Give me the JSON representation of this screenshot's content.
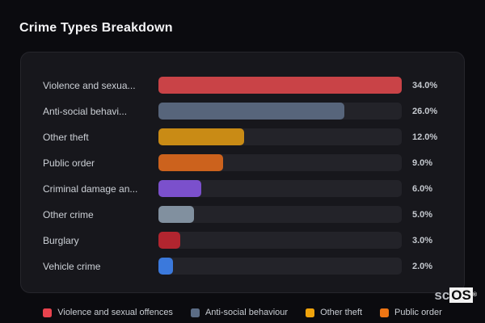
{
  "header": {
    "title": "Crime Types Breakdown"
  },
  "chart_data": {
    "type": "bar",
    "orientation": "horizontal",
    "title": "Crime Types Breakdown",
    "categories": [
      "Violence and sexua...",
      "Anti-social behavi...",
      "Other theft",
      "Public order",
      "Criminal damage an...",
      "Other crime",
      "Burglary",
      "Vehicle crime"
    ],
    "values": [
      34.0,
      26.0,
      12.0,
      9.0,
      6.0,
      5.0,
      3.0,
      2.0
    ],
    "value_labels": [
      "34.0%",
      "26.0%",
      "12.0%",
      "9.0%",
      "6.0%",
      "5.0%",
      "3.0%",
      "2.0%"
    ],
    "bar_colors": [
      "#c94347",
      "#57657b",
      "#c98b15",
      "#cc621d",
      "#7b50cc",
      "#81909f",
      "#b2252f",
      "#3b79dc"
    ],
    "xlim": [
      0,
      34
    ],
    "grid": false,
    "legend_position": "bottom",
    "legend": [
      {
        "label": "Violence and sexual offences",
        "color": "#e8434e"
      },
      {
        "label": "Anti-social behaviour",
        "color": "#5b6c85"
      },
      {
        "label": "Other theft",
        "color": "#f0a40c"
      },
      {
        "label": "Public order",
        "color": "#ee7514"
      }
    ]
  },
  "watermark": {
    "prefix": "sc",
    "suffix": "OS",
    "registered": "®"
  },
  "colors": {
    "page_bg": "#0b0b0f",
    "card_bg": "#17171c",
    "card_border": "#26262c",
    "track": "#232329",
    "title_text": "#f4f4f6",
    "label_text": "#ccd0d6",
    "value_text": "#c5c9cf"
  }
}
